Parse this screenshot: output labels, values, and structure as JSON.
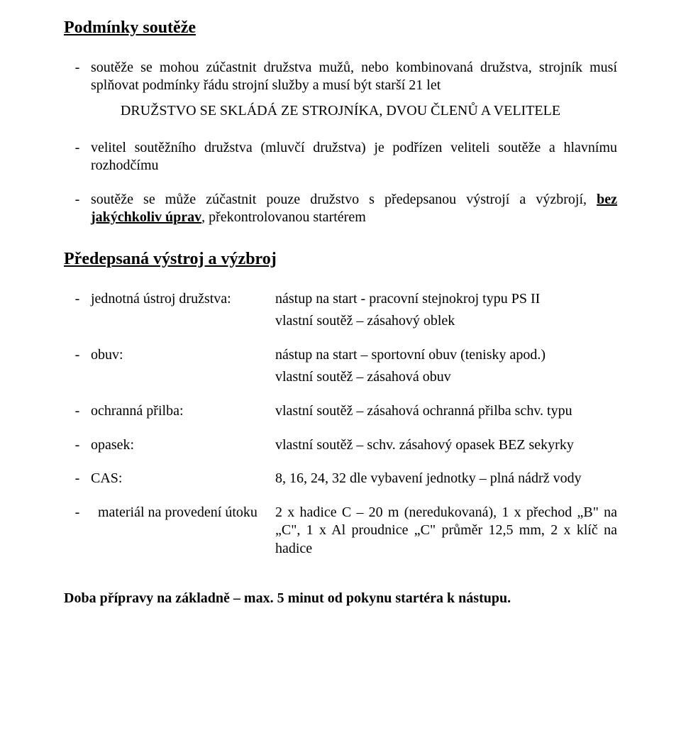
{
  "headings": {
    "h1": "Podmínky soutěže",
    "h2": "Předepsaná výstroj a výzbroj"
  },
  "bullets": {
    "b1_pre": "soutěže se mohou zúčastnit družstva mužů, nebo kombinovaná družstva, strojník musí splňovat podmínky řádu strojní služby a musí být starší 21 let",
    "center": "DRUŽSTVO SE SKLÁDÁ ZE STROJNÍKA, DVOU ČLENŮ A VELITELE",
    "b2": "velitel soutěžního družstva (mluvčí družstva) je podřízen veliteli soutěže a hlavnímu rozhodčímu",
    "b3_pre": "soutěže se může zúčastnit pouze družstvo s předepsanou výstrojí a výzbrojí, ",
    "b3_boldund": "bez jakýchkoliv úprav",
    "b3_post": ", překontrolovanou startérem"
  },
  "defs": {
    "d1_label": "jednotná ústroj družstva:",
    "d1_l1": "nástup na start - pracovní stejnokroj typu PS II",
    "d1_l2": "vlastní soutěž – zásahový oblek",
    "d2_label": "obuv:",
    "d2_l1": "nástup na start – sportovní obuv (tenisky apod.)",
    "d2_l2": "vlastní soutěž – zásahová obuv",
    "d3_label": "ochranná přilba:",
    "d3_v": "vlastní soutěž – zásahová ochranná přilba schv. typu",
    "d4_label": "opasek:",
    "d4_v": "vlastní soutěž – schv. zásahový opasek BEZ sekyrky",
    "d5_label": "CAS:",
    "d5_v": "8, 16, 24, 32 dle vybavení jednotky – plná nádrž vody",
    "d6_label": "materiál na provedení útoku",
    "d6_v": "2 x hadice C – 20 m (neredukovaná), 1 x přechod „B\" na „C\", 1 x Al proudnice „C\" průměr 12,5 mm, 2 x klíč na hadice"
  },
  "footer": "Doba přípravy na základně – max. 5 minut od pokynu startéra k nástupu."
}
